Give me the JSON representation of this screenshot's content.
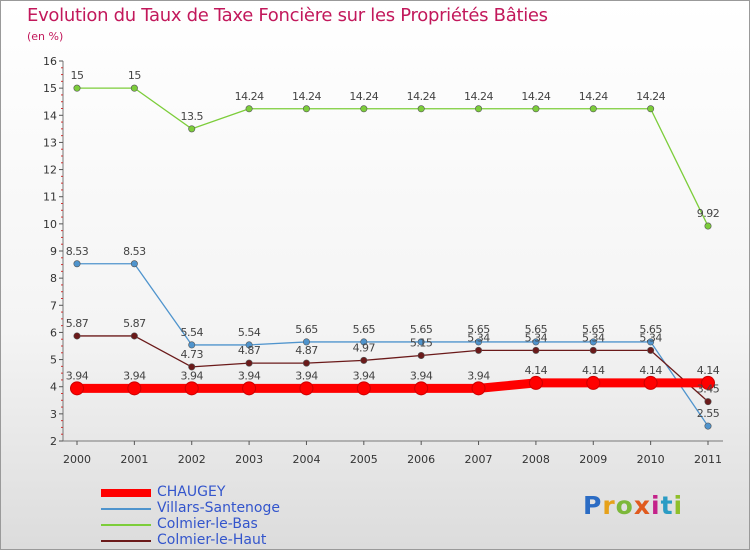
{
  "title": "Evolution du Taux de Taxe Foncière sur les Propriétés Bâties",
  "unit_label": "(en %)",
  "logo": [
    "P",
    "r",
    "o",
    "x",
    "i",
    "t",
    "i"
  ],
  "chart_data": {
    "type": "line",
    "title": "Evolution du Taux de Taxe Foncière sur les Propriétés Bâties",
    "ylabel": "(en %)",
    "xlabel": "",
    "ylim": [
      2,
      16
    ],
    "yticks": [
      2,
      3,
      4,
      5,
      6,
      7,
      8,
      9,
      10,
      11,
      12,
      13,
      14,
      15,
      16
    ],
    "categories": [
      "2000",
      "2001",
      "2002",
      "2003",
      "2004",
      "2005",
      "2006",
      "2007",
      "2008",
      "2009",
      "2010",
      "2011"
    ],
    "series": [
      {
        "name": "CHAUGEY",
        "color": "#ff0000",
        "values": [
          3.94,
          3.94,
          3.94,
          3.94,
          3.94,
          3.94,
          3.94,
          3.94,
          4.14,
          4.14,
          4.14,
          4.14
        ],
        "labels": [
          "3.94",
          "3.94",
          "3.94",
          "3.94",
          "3.94",
          "3.94",
          "3.94",
          "3.94",
          "4.14",
          "4.14",
          "4.14",
          "4.14"
        ]
      },
      {
        "name": "Villars-Santenoge",
        "color": "#4f94cd",
        "values": [
          8.53,
          8.53,
          5.54,
          5.54,
          5.65,
          5.65,
          5.65,
          5.65,
          5.65,
          5.65,
          5.65,
          2.55
        ],
        "labels": [
          "8.53",
          "8.53",
          "5.54",
          "5.54",
          "5.65",
          "5.65",
          "5.65",
          "5.65",
          "5.65",
          "5.65",
          "5.65",
          "2.55"
        ]
      },
      {
        "name": "Colmier-le-Bas",
        "color": "#7ccd3a",
        "values": [
          15,
          15,
          13.5,
          14.24,
          14.24,
          14.24,
          14.24,
          14.24,
          14.24,
          14.24,
          14.24,
          9.92
        ],
        "labels": [
          "15",
          "15",
          "13.5",
          "14.24",
          "14.24",
          "14.24",
          "14.24",
          "14.24",
          "14.24",
          "14.24",
          "14.24",
          "9.92"
        ]
      },
      {
        "name": "Colmier-le-Haut",
        "color": "#6b1a1a",
        "values": [
          5.87,
          5.87,
          4.73,
          4.87,
          4.87,
          4.97,
          5.15,
          5.34,
          5.34,
          5.34,
          5.34,
          3.45
        ],
        "labels": [
          "5.87",
          "5.87",
          "4.73",
          "4.87",
          "4.87",
          "4.97",
          "5.15",
          "5.34",
          "5.34",
          "5.34",
          "5.34",
          "3.45"
        ]
      }
    ],
    "legend": [
      "CHAUGEY",
      "Villars-Santenoge",
      "Colmier-le-Bas",
      "Colmier-le-Haut"
    ],
    "grid": false,
    "legend_position": "bottom-left"
  }
}
